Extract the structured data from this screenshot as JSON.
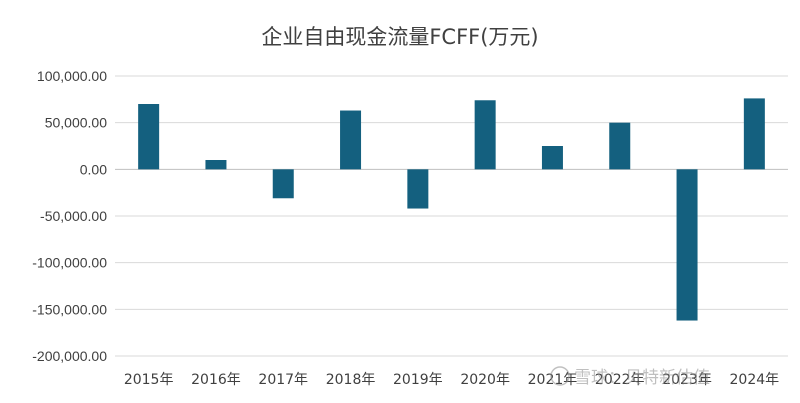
{
  "chart_data": {
    "type": "bar",
    "title": "企业自由现金流量FCFF(万元)",
    "xlabel": "",
    "ylabel": "",
    "categories": [
      "2015年",
      "2016年",
      "2017年",
      "2018年",
      "2019年",
      "2020年",
      "2021年",
      "2022年",
      "2023年",
      "2024年"
    ],
    "values": [
      70000,
      10000,
      -31000,
      63000,
      -42000,
      74000,
      25000,
      50000,
      -162000,
      76000
    ],
    "ylim": [
      -200000,
      100000
    ],
    "yticks": [
      100000,
      50000,
      0,
      -50000,
      -100000,
      -150000,
      -200000
    ],
    "ytick_labels": [
      "100,000.00",
      "50,000.00",
      "0.00",
      "-50,000.00",
      "-100,000.00",
      "-150,000.00",
      "-200,000.00"
    ],
    "bar_color": "#14607f",
    "grid": true,
    "legend": "none"
  },
  "watermark": {
    "text": "雪球：贝特新估值"
  }
}
